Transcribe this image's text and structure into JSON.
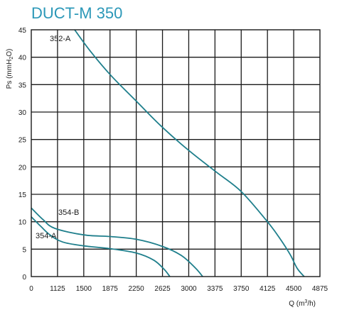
{
  "chart_data": {
    "type": "line",
    "title": "DUCT-M 350",
    "xlabel": "Q (m³/h)",
    "xlabel_main": "Q (m",
    "xlabel_sup": "3",
    "xlabel_end": "/h)",
    "ylabel": "Ps (mmH₂O)",
    "ylabel_main": "Ps (mmH",
    "ylabel_sub": "2",
    "ylabel_end": "O)",
    "x_ticks": [
      0,
      1125,
      1500,
      1875,
      2250,
      2625,
      3000,
      3375,
      3750,
      4125,
      4500,
      4875
    ],
    "y_ticks": [
      0,
      5,
      10,
      15,
      20,
      25,
      30,
      35,
      40,
      45
    ],
    "xlim": [
      0,
      4875
    ],
    "ylim": [
      0,
      45
    ],
    "grid": true,
    "line_color": "#1f7f8c",
    "series": [
      {
        "name": "352-A",
        "x": [
          1370,
          1600,
          1900,
          2250,
          2600,
          3000,
          3400,
          3750,
          4125,
          4300,
          4450,
          4550,
          4650
        ],
        "y": [
          45,
          41,
          36.5,
          32,
          27.5,
          23,
          19,
          15.5,
          10,
          7,
          4,
          1.5,
          0
        ]
      },
      {
        "name": "354-B",
        "x": [
          0,
          500,
          1000,
          1500,
          1875,
          2250,
          2625,
          2900,
          3100,
          3200
        ],
        "y": [
          12.5,
          10.4,
          8.8,
          7.6,
          7.3,
          6.8,
          5.5,
          3.8,
          1.5,
          0
        ]
      },
      {
        "name": "354-A",
        "x": [
          0,
          400,
          800,
          1200,
          1500,
          1875,
          2250,
          2500,
          2650,
          2730
        ],
        "y": [
          10.9,
          9.2,
          7.6,
          6.3,
          5.6,
          5.1,
          4.3,
          3.0,
          1.3,
          0
        ]
      }
    ]
  }
}
